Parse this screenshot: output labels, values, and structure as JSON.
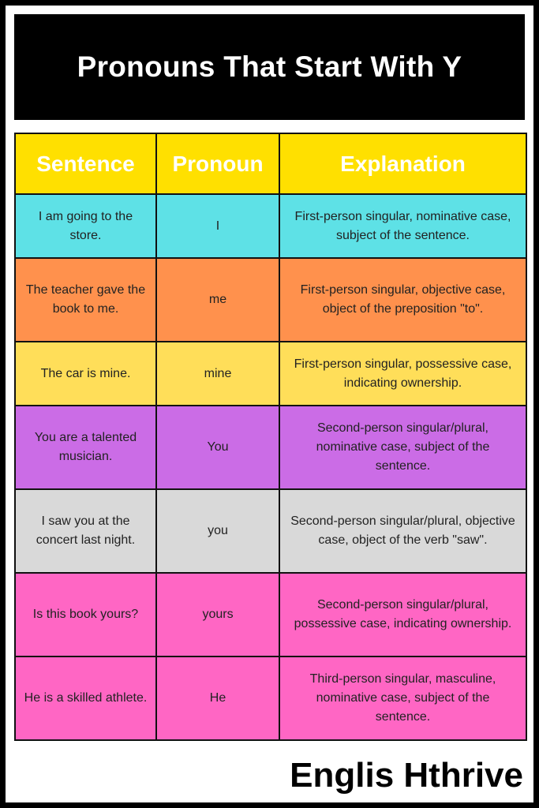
{
  "title": "Pronouns That Start With Y",
  "header_color": "#FFE000",
  "columns": [
    "Sentence",
    "Pronoun",
    "Explanation"
  ],
  "rows": [
    {
      "sentence": "I am going to the store.",
      "pronoun": "I",
      "explanation": "First-person singular, nominative case, subject of the sentence.",
      "color": "#5EE1E6"
    },
    {
      "sentence": "The teacher gave the book to me.",
      "pronoun": "me",
      "explanation": "First-person singular, objective case, object of the preposition \"to\".",
      "color": "#FF914D"
    },
    {
      "sentence": "The car is mine.",
      "pronoun": "mine",
      "explanation": "First-person singular, possessive case, indicating ownership.",
      "color": "#FFDE59"
    },
    {
      "sentence": "You are a talented musician.",
      "pronoun": "You",
      "explanation": "Second-person singular/plural, nominative case, subject of the sentence.",
      "color": "#CB6CE6"
    },
    {
      "sentence": "I saw you at the concert last night.",
      "pronoun": "you",
      "explanation": "Second-person singular/plural, objective case, object of the verb \"saw\".",
      "color": "#D9D9D9"
    },
    {
      "sentence": "Is this book yours?",
      "pronoun": "yours",
      "explanation": "Second-person singular/plural, possessive case, indicating ownership.",
      "color": "#FF66C4"
    },
    {
      "sentence": "He is a skilled athlete.",
      "pronoun": "He",
      "explanation": "Third-person singular, masculine, nominative case, subject of the sentence.",
      "color": "#FF66C4"
    }
  ],
  "brand": "Englis Hthrive"
}
